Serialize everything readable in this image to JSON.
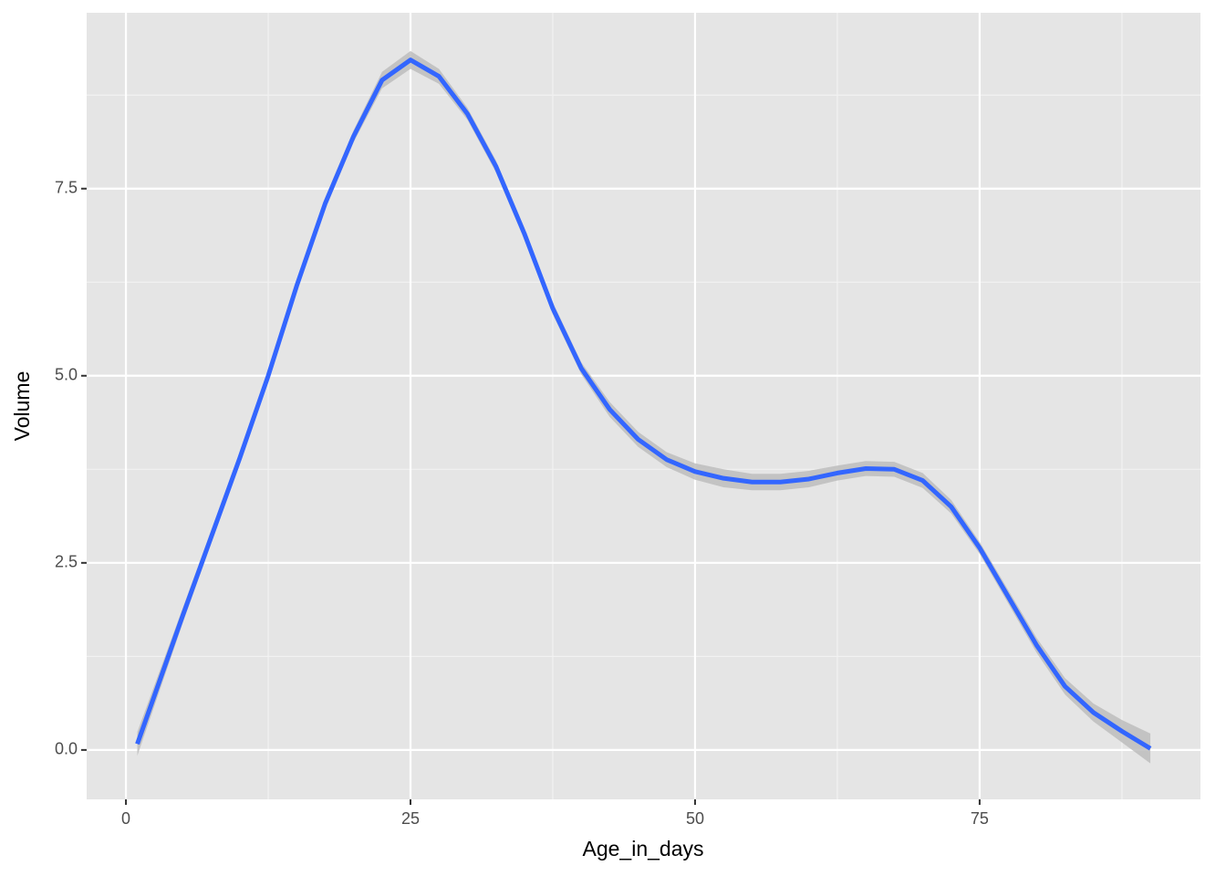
{
  "chart_data": {
    "type": "line",
    "x_label": "Age_in_days",
    "y_label": "Volume",
    "x": [
      1,
      5,
      10,
      12.5,
      15,
      17.5,
      20,
      22.5,
      25,
      27.5,
      30,
      32.5,
      35,
      37.5,
      40,
      42.5,
      45,
      47.5,
      50,
      52.5,
      55,
      57.5,
      60,
      62.5,
      65,
      67.5,
      70,
      72.5,
      75,
      77.5,
      80,
      82.5,
      85,
      87.5,
      90
    ],
    "values": [
      0.08,
      1.8,
      3.9,
      5.0,
      6.2,
      7.3,
      8.2,
      8.95,
      9.22,
      9.0,
      8.5,
      7.8,
      6.9,
      5.9,
      5.1,
      4.55,
      4.15,
      3.88,
      3.72,
      3.63,
      3.58,
      3.58,
      3.62,
      3.7,
      3.76,
      3.75,
      3.6,
      3.25,
      2.7,
      2.05,
      1.4,
      0.85,
      0.5,
      0.25,
      0.02
    ],
    "lower": [
      -0.08,
      1.7,
      3.82,
      4.92,
      6.12,
      7.22,
      8.12,
      8.84,
      9.1,
      8.9,
      8.42,
      7.72,
      6.82,
      5.82,
      5.02,
      4.45,
      4.05,
      3.78,
      3.61,
      3.51,
      3.47,
      3.47,
      3.51,
      3.6,
      3.66,
      3.65,
      3.5,
      3.16,
      2.62,
      1.96,
      1.3,
      0.74,
      0.38,
      0.1,
      -0.18
    ],
    "upper": [
      0.24,
      1.9,
      3.98,
      5.08,
      6.28,
      7.38,
      8.28,
      9.06,
      9.34,
      9.1,
      8.58,
      7.88,
      6.98,
      5.98,
      5.18,
      4.65,
      4.25,
      3.98,
      3.83,
      3.75,
      3.69,
      3.69,
      3.73,
      3.8,
      3.86,
      3.85,
      3.7,
      3.34,
      2.78,
      2.14,
      1.5,
      0.96,
      0.62,
      0.4,
      0.22
    ],
    "color": "#3366ff",
    "ribbon_color": "#bdbdbd",
    "xlim": [
      -3.45,
      94.4
    ],
    "ylim": [
      -0.66,
      9.85
    ],
    "xticks": [
      0,
      25,
      50,
      75
    ],
    "yticks": [
      {
        "value": 0,
        "label": "0.0"
      },
      2.5,
      {
        "value": 5,
        "label": "5.0"
      },
      7.5
    ],
    "x_minor_ticks": [
      12.5,
      37.5,
      62.5,
      87.5
    ],
    "y_minor_ticks": [
      1.25,
      3.75,
      6.25,
      8.75
    ],
    "grid": true
  }
}
